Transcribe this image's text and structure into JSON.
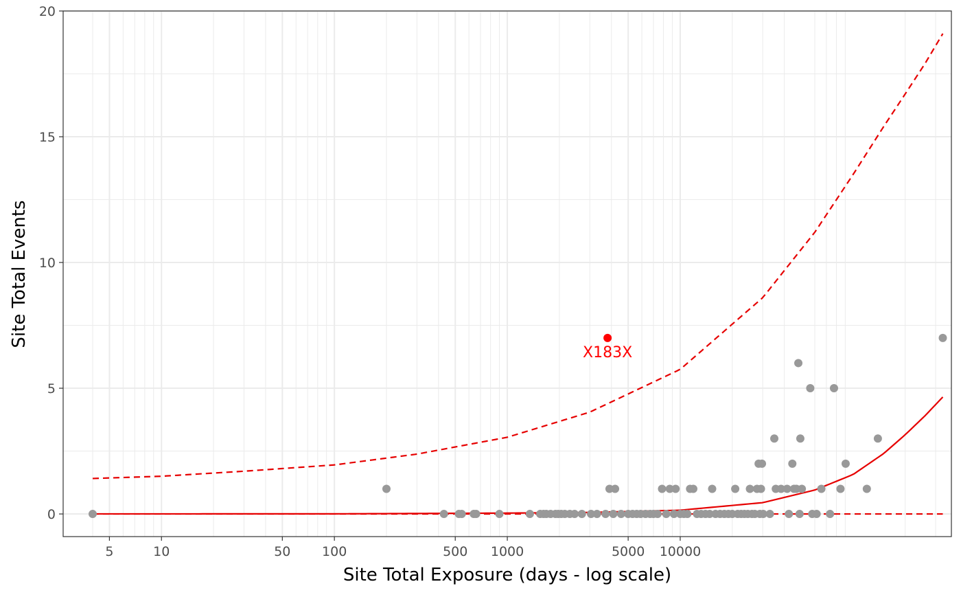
{
  "chart_data": {
    "type": "scatter",
    "title": "",
    "xlabel": "Site Total Exposure (days - log scale)",
    "ylabel": "Site Total Events",
    "x_scale": "log10",
    "xlim": [
      2.7,
      370000
    ],
    "ylim": [
      -0.9,
      20
    ],
    "x_ticks": [
      5,
      10,
      50,
      100,
      500,
      1000,
      5000,
      10000
    ],
    "x_tick_labels": [
      "5",
      "10",
      "50",
      "100",
      "500",
      "1000",
      "5000",
      "10000"
    ],
    "x_minor_ticks": [
      4,
      6,
      7,
      8,
      9,
      20,
      30,
      40,
      60,
      70,
      80,
      90,
      200,
      300,
      400,
      600,
      700,
      800,
      900,
      2000,
      3000,
      4000,
      6000,
      7000,
      8000,
      9000,
      20000,
      30000,
      40000,
      60000,
      70000,
      80000,
      90000,
      200000,
      300000
    ],
    "y_ticks": [
      0,
      5,
      10,
      15,
      20
    ],
    "y_tick_labels": [
      "0",
      "5",
      "10",
      "15",
      "20"
    ],
    "y_minor_ticks": [
      2.5,
      7.5,
      12.5,
      17.5
    ],
    "grid": true,
    "colors": {
      "points": "#999999",
      "flagged": "#ff0000",
      "bounds": "#e60000",
      "grid": "#ebebeb",
      "panel_border": "#333333"
    },
    "points": [
      {
        "x": 4,
        "y": 0
      },
      {
        "x": 200,
        "y": 1
      },
      {
        "x": 430,
        "y": 0
      },
      {
        "x": 525,
        "y": 0
      },
      {
        "x": 545,
        "y": 0
      },
      {
        "x": 640,
        "y": 0
      },
      {
        "x": 660,
        "y": 0
      },
      {
        "x": 900,
        "y": 0
      },
      {
        "x": 1350,
        "y": 0
      },
      {
        "x": 1550,
        "y": 0
      },
      {
        "x": 1620,
        "y": 0
      },
      {
        "x": 1680,
        "y": 0
      },
      {
        "x": 1780,
        "y": 0
      },
      {
        "x": 1900,
        "y": 0
      },
      {
        "x": 1970,
        "y": 0
      },
      {
        "x": 2050,
        "y": 0
      },
      {
        "x": 2150,
        "y": 0
      },
      {
        "x": 2300,
        "y": 0
      },
      {
        "x": 2450,
        "y": 0
      },
      {
        "x": 2700,
        "y": 0
      },
      {
        "x": 3050,
        "y": 0
      },
      {
        "x": 3300,
        "y": 0
      },
      {
        "x": 3700,
        "y": 0
      },
      {
        "x": 3900,
        "y": 1
      },
      {
        "x": 4200,
        "y": 1
      },
      {
        "x": 4100,
        "y": 0
      },
      {
        "x": 4550,
        "y": 0
      },
      {
        "x": 5000,
        "y": 0
      },
      {
        "x": 5300,
        "y": 0
      },
      {
        "x": 5600,
        "y": 0
      },
      {
        "x": 5900,
        "y": 0
      },
      {
        "x": 6300,
        "y": 0
      },
      {
        "x": 6700,
        "y": 0
      },
      {
        "x": 7000,
        "y": 0
      },
      {
        "x": 7400,
        "y": 0
      },
      {
        "x": 7850,
        "y": 1
      },
      {
        "x": 8300,
        "y": 0
      },
      {
        "x": 8700,
        "y": 1
      },
      {
        "x": 9200,
        "y": 0
      },
      {
        "x": 9400,
        "y": 1
      },
      {
        "x": 10000,
        "y": 0
      },
      {
        "x": 10500,
        "y": 0
      },
      {
        "x": 11000,
        "y": 0
      },
      {
        "x": 11400,
        "y": 1
      },
      {
        "x": 11900,
        "y": 1
      },
      {
        "x": 12500,
        "y": 0
      },
      {
        "x": 13200,
        "y": 0
      },
      {
        "x": 14000,
        "y": 0
      },
      {
        "x": 14800,
        "y": 0
      },
      {
        "x": 15300,
        "y": 1
      },
      {
        "x": 16000,
        "y": 0
      },
      {
        "x": 17000,
        "y": 0
      },
      {
        "x": 18000,
        "y": 0
      },
      {
        "x": 19000,
        "y": 0
      },
      {
        "x": 20000,
        "y": 0
      },
      {
        "x": 20800,
        "y": 1
      },
      {
        "x": 21500,
        "y": 0
      },
      {
        "x": 22500,
        "y": 0
      },
      {
        "x": 23500,
        "y": 0
      },
      {
        "x": 24600,
        "y": 0
      },
      {
        "x": 25300,
        "y": 1
      },
      {
        "x": 26000,
        "y": 0
      },
      {
        "x": 27000,
        "y": 0
      },
      {
        "x": 27800,
        "y": 1
      },
      {
        "x": 28400,
        "y": 2
      },
      {
        "x": 28900,
        "y": 0
      },
      {
        "x": 29300,
        "y": 1
      },
      {
        "x": 29700,
        "y": 2
      },
      {
        "x": 30200,
        "y": 0
      },
      {
        "x": 33000,
        "y": 0
      },
      {
        "x": 35000,
        "y": 3
      },
      {
        "x": 35700,
        "y": 1
      },
      {
        "x": 38300,
        "y": 1
      },
      {
        "x": 41500,
        "y": 1
      },
      {
        "x": 42500,
        "y": 0
      },
      {
        "x": 44500,
        "y": 2
      },
      {
        "x": 45500,
        "y": 1
      },
      {
        "x": 47000,
        "y": 1
      },
      {
        "x": 48200,
        "y": 6
      },
      {
        "x": 49000,
        "y": 0
      },
      {
        "x": 49500,
        "y": 3
      },
      {
        "x": 50500,
        "y": 1
      },
      {
        "x": 56500,
        "y": 5
      },
      {
        "x": 58000,
        "y": 0
      },
      {
        "x": 61500,
        "y": 0
      },
      {
        "x": 65500,
        "y": 1
      },
      {
        "x": 73500,
        "y": 0
      },
      {
        "x": 77500,
        "y": 5
      },
      {
        "x": 84500,
        "y": 1
      },
      {
        "x": 90500,
        "y": 2
      },
      {
        "x": 120000,
        "y": 1
      },
      {
        "x": 139000,
        "y": 3
      },
      {
        "x": 330000,
        "y": 7
      }
    ],
    "flagged_points": [
      {
        "x": 3800,
        "y": 7,
        "label": "X183X"
      }
    ],
    "lines": [
      {
        "style": "solid",
        "points": [
          [
            4,
            0.003
          ],
          [
            100,
            0.005
          ],
          [
            1000,
            0.035
          ],
          [
            3000,
            0.06
          ],
          [
            10000,
            0.15
          ],
          [
            30000,
            0.45
          ],
          [
            60000,
            0.95
          ],
          [
            100000,
            1.57
          ],
          [
            150000,
            2.4
          ],
          [
            200000,
            3.15
          ],
          [
            260000,
            3.9
          ],
          [
            330000,
            4.65
          ]
        ]
      },
      {
        "style": "dashed",
        "points": [
          [
            4,
            1.41
          ],
          [
            10,
            1.5
          ],
          [
            30,
            1.7
          ],
          [
            100,
            1.95
          ],
          [
            300,
            2.38
          ],
          [
            1000,
            3.05
          ],
          [
            3000,
            4.05
          ],
          [
            10000,
            5.75
          ],
          [
            30000,
            8.6
          ],
          [
            60000,
            11.2
          ],
          [
            100000,
            13.5
          ],
          [
            150000,
            15.4
          ],
          [
            200000,
            16.7
          ],
          [
            260000,
            17.9
          ],
          [
            330000,
            19.1
          ]
        ]
      },
      {
        "style": "dashed",
        "points": [
          [
            4,
            0
          ],
          [
            330000,
            0
          ]
        ]
      }
    ]
  }
}
